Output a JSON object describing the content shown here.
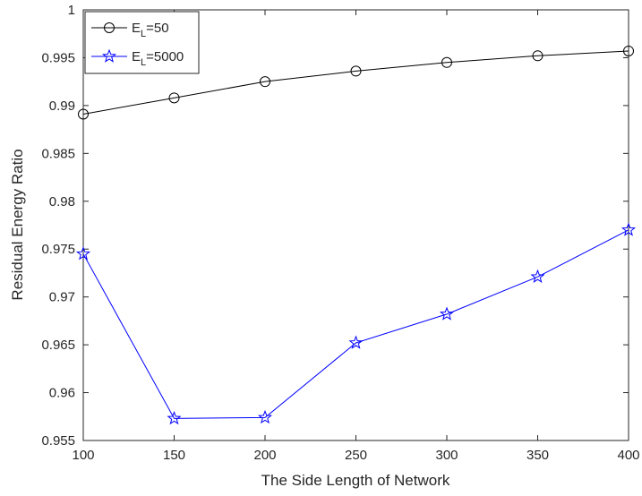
{
  "chart_data": {
    "type": "line",
    "xlabel": "The Side Length of Network",
    "ylabel": "Residual Energy Ratio",
    "xlim": [
      100,
      400
    ],
    "ylim": [
      0.955,
      1.0
    ],
    "xticks": [
      100,
      150,
      200,
      250,
      300,
      350,
      400
    ],
    "xtick_labels": [
      "100",
      "150",
      "200",
      "250",
      "300",
      "350",
      "400"
    ],
    "yticks": [
      0.955,
      0.96,
      0.965,
      0.97,
      0.975,
      0.98,
      0.985,
      0.99,
      0.995,
      1.0
    ],
    "ytick_labels": [
      "0.955",
      "0.96",
      "0.965",
      "0.97",
      "0.975",
      "0.98",
      "0.985",
      "0.99",
      "0.995",
      "1"
    ],
    "grid": false,
    "legend_position": "top-left",
    "x": [
      100,
      150,
      200,
      250,
      300,
      350,
      400
    ],
    "series": [
      {
        "legend_main": "E",
        "legend_sub": "L",
        "legend_rest": "=50",
        "color": "#000000",
        "marker": "circle",
        "values": [
          0.9891,
          0.9908,
          0.9925,
          0.9936,
          0.9945,
          0.9952,
          0.9957
        ]
      },
      {
        "legend_main": "E",
        "legend_sub": "L",
        "legend_rest": "=5000",
        "color": "#0000ff",
        "marker": "pentagram",
        "values": [
          0.9745,
          0.9573,
          0.9574,
          0.9652,
          0.9682,
          0.9721,
          0.977
        ]
      }
    ]
  }
}
